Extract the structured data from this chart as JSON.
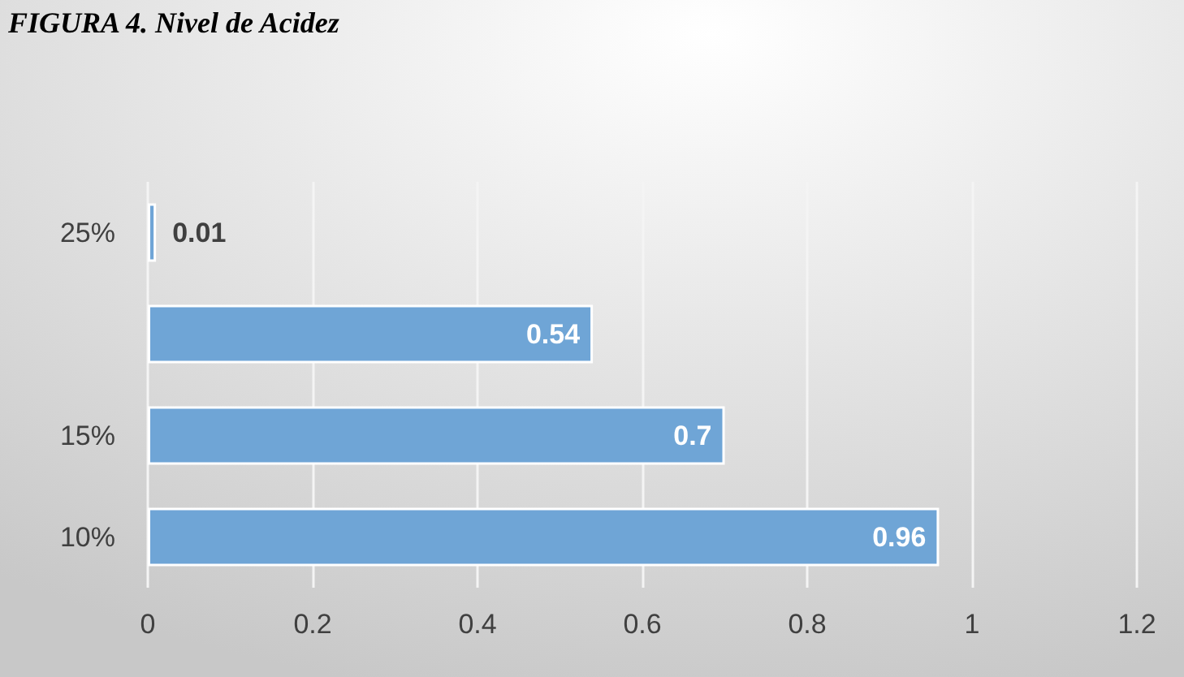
{
  "chart_data": {
    "type": "bar",
    "orientation": "horizontal",
    "title": "FIGURA 4. Nivel de Acidez",
    "categories": [
      "25%",
      null,
      "15%",
      "10%"
    ],
    "values": [
      0.01,
      0.54,
      0.7,
      0.96
    ],
    "color": "#6fa5d6",
    "xlim": [
      0,
      1.2
    ],
    "xticks": [
      0,
      0.2,
      0.4,
      0.6,
      0.8,
      1,
      1.2
    ],
    "grid": "x",
    "data_labels": true
  }
}
